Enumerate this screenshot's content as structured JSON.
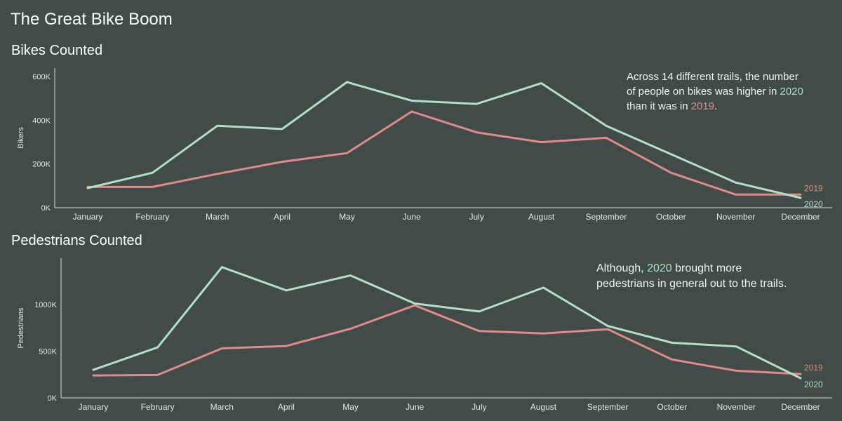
{
  "title": "The Great Bike Boom",
  "colors": {
    "background": "#414b48",
    "series_2020": "#b3dfc8",
    "series_2019": "#e08a8b",
    "axis": "#dddddd"
  },
  "annotations": {
    "bikes": {
      "t1": "Across 14 different trails, the number of people on bikes was higher in ",
      "y2020": "2020",
      "t2": " than it was in ",
      "y2019": "2019",
      "t3": "."
    },
    "peds": {
      "t1": "Although, ",
      "y2020": "2020",
      "t2": " brought more pedestrians in general out to the trails."
    }
  },
  "chart_data": [
    {
      "type": "line",
      "title": "Bikes Counted",
      "xlabel": "",
      "ylabel": "Bikers",
      "ylim": [
        0,
        620000
      ],
      "yticks": [
        0,
        200000,
        400000,
        600000
      ],
      "ytick_labels": [
        "0K",
        "200K",
        "400K",
        "600K"
      ],
      "categories": [
        "January",
        "February",
        "March",
        "April",
        "May",
        "June",
        "July",
        "August",
        "September",
        "October",
        "November",
        "December"
      ],
      "series": [
        {
          "name": "2019",
          "values": [
            95000,
            95000,
            155000,
            210000,
            250000,
            440000,
            345000,
            300000,
            320000,
            160000,
            60000,
            60000
          ]
        },
        {
          "name": "2020",
          "values": [
            90000,
            160000,
            375000,
            360000,
            575000,
            490000,
            475000,
            570000,
            375000,
            245000,
            115000,
            45000
          ]
        }
      ],
      "grid": false,
      "legend": "end-of-line labels"
    },
    {
      "type": "line",
      "title": "Pedestrians Counted",
      "xlabel": "",
      "ylabel": "Pedestrians",
      "ylim": [
        0,
        1450000
      ],
      "yticks": [
        0,
        500000,
        1000000
      ],
      "ytick_labels": [
        "0K",
        "500K",
        "1000K"
      ],
      "categories": [
        "January",
        "February",
        "March",
        "April",
        "May",
        "June",
        "July",
        "August",
        "September",
        "October",
        "November",
        "December"
      ],
      "series": [
        {
          "name": "2019",
          "values": [
            240000,
            245000,
            530000,
            555000,
            740000,
            990000,
            715000,
            690000,
            735000,
            410000,
            290000,
            255000
          ]
        },
        {
          "name": "2020",
          "values": [
            300000,
            540000,
            1400000,
            1150000,
            1310000,
            1010000,
            925000,
            1180000,
            770000,
            590000,
            550000,
            210000
          ]
        }
      ],
      "grid": false,
      "legend": "end-of-line labels"
    }
  ]
}
